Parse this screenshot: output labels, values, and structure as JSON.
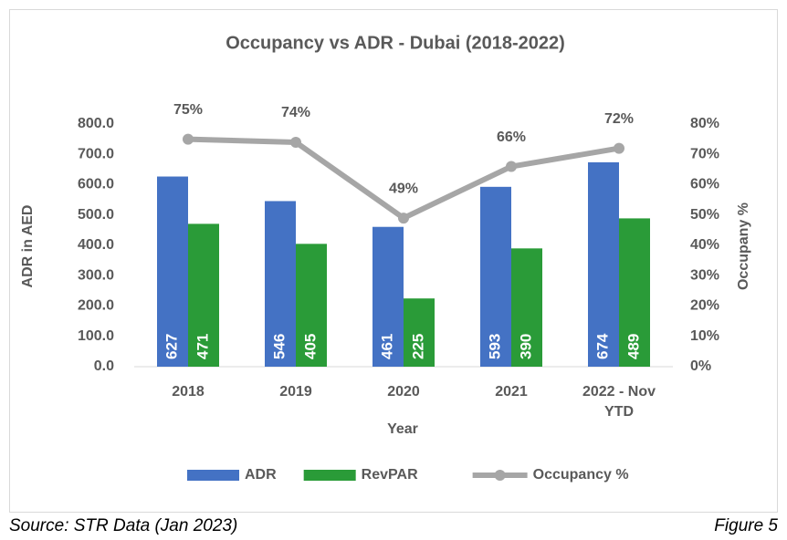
{
  "chart_data": {
    "type": "bar",
    "title": "Occupancy vs ADR - Dubai (2018-2022)",
    "x_label": "Year",
    "y_label": "ADR in AED",
    "y2_label": "Occupany %",
    "categories": [
      "2018",
      "2019",
      "2020",
      "2021",
      "2022 - Nov YTD"
    ],
    "series": [
      {
        "name": "ADR",
        "color": "#4472c4",
        "values": [
          627,
          546,
          461,
          593,
          674
        ]
      },
      {
        "name": "RevPAR",
        "color": "#2a9b38",
        "values": [
          471,
          405,
          225,
          390,
          489
        ]
      },
      {
        "name": "Occupancy %",
        "type": "line",
        "axis": "y2",
        "color": "#a6a6a6",
        "values": [
          75,
          74,
          49,
          66,
          72
        ],
        "value_labels": [
          "75%",
          "74%",
          "49%",
          "66%",
          "72%"
        ]
      }
    ],
    "ylim": [
      0,
      800
    ],
    "yticks": [
      {
        "value": 0,
        "label": "0.0"
      },
      {
        "value": 100,
        "label": "100.0"
      },
      {
        "value": 200,
        "label": "200.0"
      },
      {
        "value": 300,
        "label": "300.0"
      },
      {
        "value": 400,
        "label": "400.0"
      },
      {
        "value": 500,
        "label": "500.0"
      },
      {
        "value": 600,
        "label": "600.0"
      },
      {
        "value": 700,
        "label": "700.0"
      },
      {
        "value": 800,
        "label": "800.0"
      }
    ],
    "y2lim": [
      0,
      80
    ],
    "y2ticks": [
      {
        "value": 0,
        "label": "0%"
      },
      {
        "value": 10,
        "label": "10%"
      },
      {
        "value": 20,
        "label": "20%"
      },
      {
        "value": 30,
        "label": "30%"
      },
      {
        "value": 40,
        "label": "40%"
      },
      {
        "value": 50,
        "label": "50%"
      },
      {
        "value": 60,
        "label": "60%"
      },
      {
        "value": 70,
        "label": "70%"
      },
      {
        "value": 80,
        "label": "80%"
      }
    ],
    "legend": "bottom",
    "source": "Source: STR Data (Jan 2023)",
    "figure": "Figure 5"
  }
}
